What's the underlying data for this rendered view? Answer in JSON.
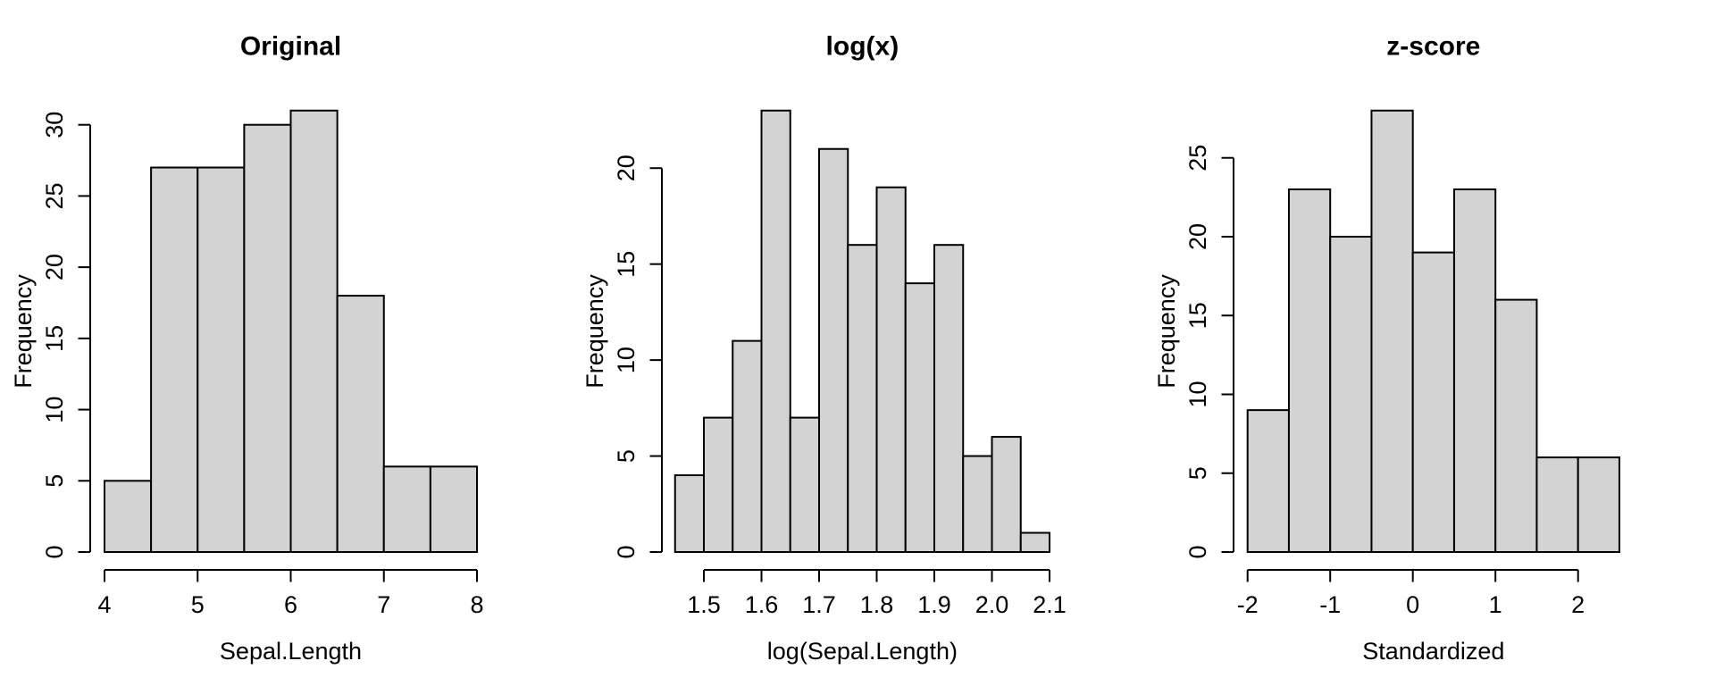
{
  "figure": {
    "background": "#FFFFFF",
    "style": {
      "bar_fill": "#D3D3D3",
      "bar_border": "#000000",
      "axis_color": "#000000",
      "text_color": "#000000"
    }
  },
  "chart_data": [
    {
      "type": "bar",
      "chart_kind": "histogram",
      "title": "Original",
      "xlabel": "Sepal.Length",
      "ylabel": "Frequency",
      "bin_edges": [
        4.0,
        4.5,
        5.0,
        5.5,
        6.0,
        6.5,
        7.0,
        7.5,
        8.0
      ],
      "counts": [
        5,
        27,
        27,
        30,
        31,
        18,
        6,
        6
      ],
      "x_ticks": [
        4,
        5,
        6,
        7,
        8
      ],
      "x_tick_labels": [
        "4",
        "5",
        "6",
        "7",
        "8"
      ],
      "y_ticks": [
        0,
        5,
        10,
        15,
        20,
        25,
        30
      ],
      "y_tick_labels": [
        "0",
        "5",
        "10",
        "15",
        "20",
        "25",
        "30"
      ],
      "xlim": [
        4,
        8
      ],
      "ylim": [
        0,
        31
      ],
      "grid": false,
      "legend": null
    },
    {
      "type": "bar",
      "chart_kind": "histogram",
      "title": "log(x)",
      "xlabel": "log(Sepal.Length)",
      "ylabel": "Frequency",
      "bin_edges": [
        1.45,
        1.5,
        1.55,
        1.6,
        1.65,
        1.7,
        1.75,
        1.8,
        1.85,
        1.9,
        1.95,
        2.0,
        2.05,
        2.1
      ],
      "counts": [
        4,
        7,
        11,
        23,
        7,
        21,
        16,
        19,
        14,
        16,
        5,
        6,
        1
      ],
      "x_ticks": [
        1.5,
        1.6,
        1.7,
        1.8,
        1.9,
        2.0,
        2.1
      ],
      "x_tick_labels": [
        "1.5",
        "1.6",
        "1.7",
        "1.8",
        "1.9",
        "2.0",
        "2.1"
      ],
      "y_ticks": [
        0,
        5,
        10,
        15,
        20
      ],
      "y_tick_labels": [
        "0",
        "5",
        "10",
        "15",
        "20"
      ],
      "xlim": [
        1.45,
        2.1
      ],
      "ylim": [
        0,
        23
      ],
      "grid": false,
      "legend": null
    },
    {
      "type": "bar",
      "chart_kind": "histogram",
      "title": "z-score",
      "xlabel": "Standardized",
      "ylabel": "Frequency",
      "bin_edges": [
        -2.0,
        -1.5,
        -1.0,
        -0.5,
        0.0,
        0.5,
        1.0,
        1.5,
        2.0,
        2.5
      ],
      "counts": [
        9,
        23,
        20,
        28,
        19,
        23,
        16,
        6,
        6
      ],
      "x_ticks": [
        -2,
        -1,
        0,
        1,
        2
      ],
      "x_tick_labels": [
        "-2",
        "-1",
        "0",
        "1",
        "2"
      ],
      "y_ticks": [
        0,
        5,
        10,
        15,
        20,
        25
      ],
      "y_tick_labels": [
        "0",
        "5",
        "10",
        "15",
        "20",
        "25"
      ],
      "xlim": [
        -2,
        2.5
      ],
      "ylim": [
        0,
        28
      ],
      "grid": false,
      "legend": null
    }
  ]
}
